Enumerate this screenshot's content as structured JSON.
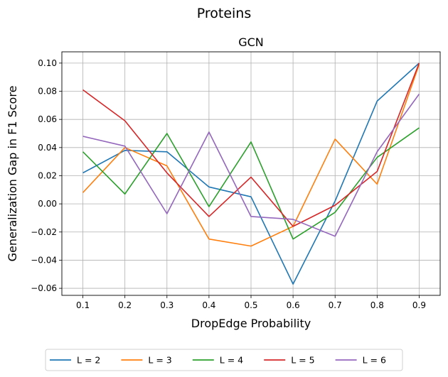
{
  "chart_data": {
    "type": "line",
    "suptitle": "Proteins",
    "title": "GCN",
    "xlabel": "DropEdge Probability",
    "ylabel": "Generalization Gap in F1 Score",
    "x": [
      0.1,
      0.2,
      0.3,
      0.4,
      0.5,
      0.6,
      0.7,
      0.8,
      0.9
    ],
    "x_ticks": [
      "0.1",
      "0.2",
      "0.3",
      "0.4",
      "0.5",
      "0.6",
      "0.7",
      "0.8",
      "0.9"
    ],
    "xlim": [
      0.05,
      0.95
    ],
    "ylim": [
      -0.065,
      0.108
    ],
    "y_ticks": [
      -0.06,
      -0.04,
      -0.02,
      0.0,
      0.02,
      0.04,
      0.06,
      0.08,
      0.1
    ],
    "y_tick_labels": [
      "−0.06",
      "−0.04",
      "−0.02",
      "0.00",
      "0.02",
      "0.04",
      "0.06",
      "0.08",
      "0.10"
    ],
    "grid": true,
    "legend_position": "bottom",
    "series": [
      {
        "name": "L = 2",
        "color": "#1f77b4",
        "values": [
          0.022,
          0.038,
          0.037,
          0.012,
          0.005,
          -0.057,
          0.002,
          0.073,
          0.1
        ]
      },
      {
        "name": "L = 3",
        "color": "#ff7f0e",
        "values": [
          0.008,
          0.04,
          0.027,
          -0.025,
          -0.03,
          -0.016,
          0.046,
          0.014,
          0.099
        ]
      },
      {
        "name": "L = 4",
        "color": "#2ca02c",
        "values": [
          0.037,
          0.007,
          0.05,
          -0.002,
          0.044,
          -0.025,
          -0.006,
          0.033,
          0.054
        ]
      },
      {
        "name": "L = 5",
        "color": "#d62728",
        "values": [
          0.081,
          0.059,
          0.022,
          -0.009,
          0.019,
          -0.016,
          -0.001,
          0.023,
          0.1
        ]
      },
      {
        "name": "L = 6",
        "color": "#9467bd",
        "values": [
          0.048,
          0.041,
          -0.007,
          0.051,
          -0.009,
          -0.011,
          -0.023,
          0.037,
          0.078
        ]
      }
    ]
  }
}
